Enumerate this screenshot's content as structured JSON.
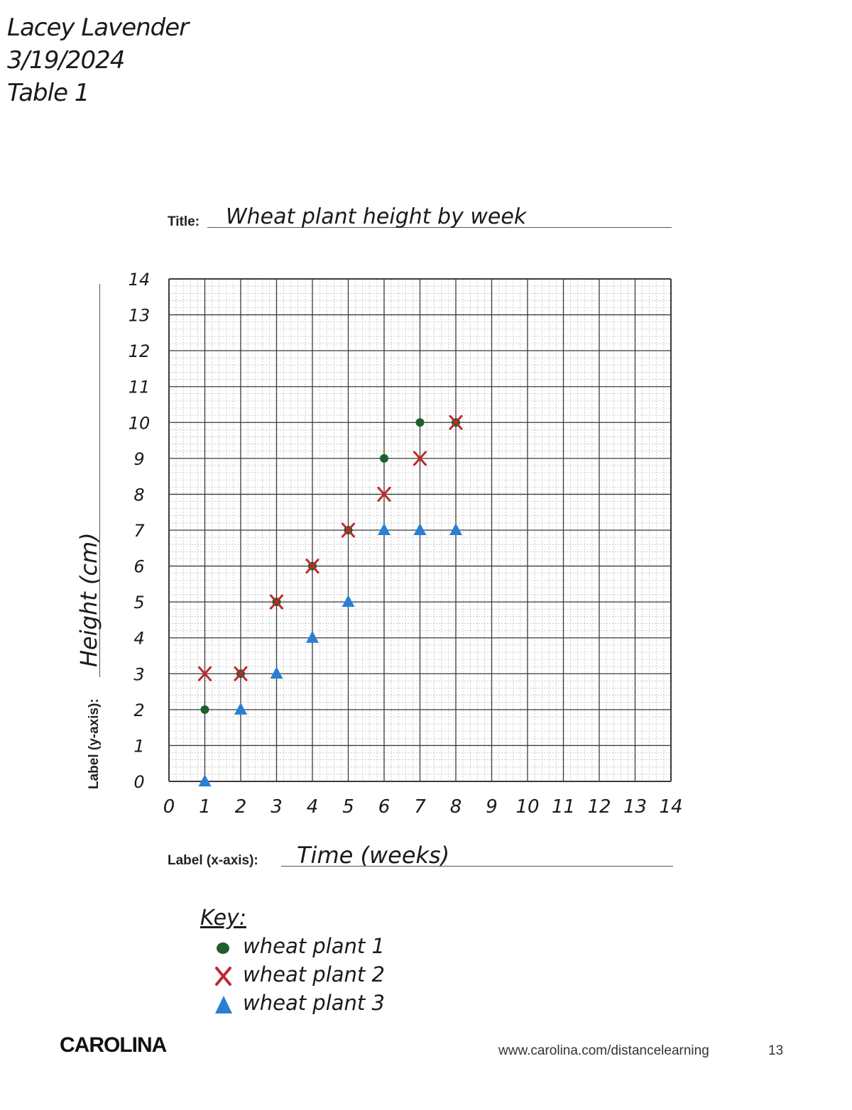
{
  "header": {
    "name": "Lacey Lavender",
    "date": "3/19/2024",
    "table": "Table 1"
  },
  "form": {
    "title_label": "Title:",
    "title_value": "Wheat plant height by week",
    "ylabel_label": "Label (y-axis):",
    "ylabel_value": "Height (cm)",
    "xlabel_label": "Label (x-axis):",
    "xlabel_value": "Time (weeks)"
  },
  "key": {
    "title": "Key:",
    "items": [
      {
        "label": "wheat plant 1",
        "marker": "circle",
        "color": "#1f5f2e"
      },
      {
        "label": "wheat plant 2",
        "marker": "x",
        "color": "#c0282d"
      },
      {
        "label": "wheat plant 3",
        "marker": "triangle",
        "color": "#2a7fd4"
      }
    ]
  },
  "footer": {
    "brand": "CAROLINA",
    "url": "www.carolina.com/distancelearning",
    "page": "13"
  },
  "chart_data": {
    "type": "scatter",
    "title": "Wheat plant height by week",
    "xlabel": "Time (weeks)",
    "ylabel": "Height (cm)",
    "xlim": [
      0,
      14
    ],
    "ylim": [
      0,
      14
    ],
    "x_ticks": [
      "0",
      "1",
      "2",
      "3",
      "4",
      "5",
      "6",
      "7",
      "8",
      "9",
      "10",
      "11",
      "12",
      "13",
      "14"
    ],
    "y_ticks": [
      "0",
      "1",
      "2",
      "3",
      "4",
      "5",
      "6",
      "7",
      "8",
      "9",
      "10",
      "11",
      "12",
      "13",
      "14"
    ],
    "grid": true,
    "legend": "bottom-left",
    "series": [
      {
        "name": "wheat plant 1",
        "marker": "circle",
        "color": "#1f5f2e",
        "points": [
          [
            1,
            2
          ],
          [
            2,
            3
          ],
          [
            3,
            5
          ],
          [
            4,
            6
          ],
          [
            5,
            7
          ],
          [
            6,
            9
          ],
          [
            7,
            10
          ],
          [
            8,
            10
          ]
        ]
      },
      {
        "name": "wheat plant 2",
        "marker": "x",
        "color": "#c0282d",
        "points": [
          [
            1,
            3
          ],
          [
            2,
            3
          ],
          [
            3,
            5
          ],
          [
            4,
            6
          ],
          [
            5,
            7
          ],
          [
            6,
            8
          ],
          [
            7,
            9
          ],
          [
            8,
            10
          ]
        ]
      },
      {
        "name": "wheat plant 3",
        "marker": "triangle",
        "color": "#2a7fd4",
        "points": [
          [
            1,
            0
          ],
          [
            2,
            2
          ],
          [
            3,
            3
          ],
          [
            4,
            4
          ],
          [
            5,
            5
          ],
          [
            6,
            7
          ],
          [
            7,
            7
          ],
          [
            8,
            7
          ]
        ]
      }
    ]
  }
}
